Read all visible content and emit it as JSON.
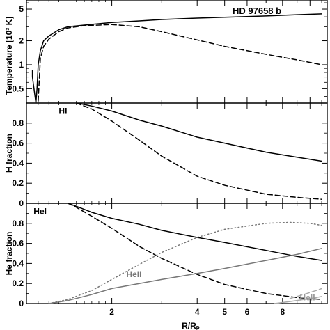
{
  "chart_data": [
    {
      "type": "line",
      "title": "HD 97658 b",
      "ylabel": "Temperature [10³ K]",
      "xlabel": "R/Rₚ",
      "xscale": "log",
      "yscale": "log",
      "xlim": [
        1.0,
        11.5
      ],
      "ylim": [
        0.33,
        6.5
      ],
      "yticks": [
        0.5,
        1,
        2,
        5
      ],
      "series": [
        {
          "style": "solid",
          "color": "#000000",
          "x": [
            1.05,
            1.05,
            1.08,
            1.09,
            1.1,
            1.12,
            1.15,
            1.2,
            1.3,
            1.4,
            1.6,
            2.0,
            2.5,
            3.0,
            4.0,
            5.0,
            7.0,
            9.0,
            11.0
          ],
          "y": [
            0.85,
            0.7,
            0.33,
            0.5,
            1.0,
            1.5,
            2.0,
            2.3,
            2.75,
            3.0,
            3.15,
            3.4,
            3.55,
            3.7,
            3.85,
            3.95,
            4.1,
            4.25,
            4.35
          ]
        },
        {
          "style": "dashed",
          "color": "#000000",
          "x": [
            1.1,
            1.12,
            1.15,
            1.2,
            1.3,
            1.4,
            1.6,
            2.0,
            2.5,
            3.0,
            4.0,
            5.0,
            7.0,
            9.0,
            11.0
          ],
          "y": [
            0.35,
            1.2,
            1.7,
            2.1,
            2.6,
            2.9,
            3.1,
            3.2,
            3.0,
            2.6,
            2.05,
            1.7,
            1.35,
            1.15,
            1.0
          ]
        }
      ]
    },
    {
      "type": "line",
      "ylabel": "H fraction",
      "xscale": "log",
      "xlim": [
        1.0,
        11.5
      ],
      "ylim": [
        0,
        1.0
      ],
      "yticks": [
        0,
        0.2,
        0.4,
        0.6,
        0.8
      ],
      "annotations": [
        {
          "text": "HI",
          "x": 1.3,
          "y": 0.92
        }
      ],
      "series": [
        {
          "style": "solid",
          "color": "#000000",
          "x": [
            1.5,
            1.7,
            2.0,
            2.5,
            3.0,
            4.0,
            5.0,
            7.0,
            9.0,
            11.0
          ],
          "y": [
            1.0,
            0.97,
            0.92,
            0.83,
            0.77,
            0.66,
            0.6,
            0.51,
            0.46,
            0.42
          ]
        },
        {
          "style": "dashed",
          "color": "#000000",
          "x": [
            1.5,
            1.7,
            2.0,
            2.5,
            3.0,
            4.0,
            5.0,
            7.0,
            9.0,
            11.0
          ],
          "y": [
            1.0,
            0.94,
            0.82,
            0.63,
            0.47,
            0.27,
            0.18,
            0.09,
            0.06,
            0.04
          ]
        }
      ]
    },
    {
      "type": "line",
      "ylabel": "He fraction",
      "xlabel": "R/Rₚ",
      "xscale": "log",
      "xlim": [
        1.0,
        11.5
      ],
      "ylim": [
        0,
        1.0
      ],
      "yticks": [
        0,
        0.2,
        0.4,
        0.6,
        0.8
      ],
      "xticks": [
        2,
        4,
        5,
        6,
        8
      ],
      "annotations": [
        {
          "text": "HeI",
          "x": 1.06,
          "y": 0.92,
          "color": "#000000"
        },
        {
          "text": "HeII",
          "x": 2.25,
          "y": 0.29,
          "color": "#777777"
        },
        {
          "text": "HeII",
          "x": 9.2,
          "y": 0.06,
          "color": "#999999"
        }
      ],
      "series": [
        {
          "name": "HeI",
          "style": "solid",
          "color": "#000000",
          "x": [
            1.4,
            1.5,
            1.7,
            2.0,
            2.5,
            3.0,
            4.0,
            5.0,
            7.0,
            9.0,
            11.0
          ],
          "y": [
            1.0,
            0.97,
            0.91,
            0.85,
            0.79,
            0.73,
            0.66,
            0.61,
            0.53,
            0.47,
            0.43
          ]
        },
        {
          "name": "HeI",
          "style": "dashed",
          "color": "#000000",
          "x": [
            1.4,
            1.5,
            1.7,
            2.0,
            2.5,
            3.0,
            4.0,
            5.0,
            7.0,
            9.0,
            11.0
          ],
          "y": [
            1.0,
            0.96,
            0.87,
            0.75,
            0.57,
            0.45,
            0.29,
            0.19,
            0.1,
            0.06,
            0.04
          ]
        },
        {
          "name": "HeII",
          "style": "solid",
          "color": "#777777",
          "x": [
            1.2,
            1.4,
            1.7,
            2.0,
            2.5,
            3.0,
            4.0,
            5.0,
            7.0,
            9.0,
            11.0
          ],
          "y": [
            0.0,
            0.03,
            0.09,
            0.15,
            0.2,
            0.24,
            0.3,
            0.35,
            0.43,
            0.49,
            0.55
          ]
        },
        {
          "name": "HeII",
          "style": "dotted",
          "color": "#777777",
          "x": [
            1.2,
            1.4,
            1.7,
            2.0,
            2.5,
            3.0,
            4.0,
            5.0,
            7.0,
            8.5,
            10.0,
            11.0
          ],
          "y": [
            0.0,
            0.04,
            0.13,
            0.24,
            0.39,
            0.51,
            0.66,
            0.74,
            0.8,
            0.81,
            0.8,
            0.78
          ]
        },
        {
          "name": "HeII",
          "style": "solid",
          "color": "#aaaaaa",
          "x": [
            7.5,
            8.5,
            9.5,
            10.5,
            11.0
          ],
          "y": [
            0.0,
            0.02,
            0.04,
            0.06,
            0.07
          ]
        },
        {
          "name": "HeII",
          "style": "dashed",
          "color": "#aaaaaa",
          "x": [
            8.5,
            9.5,
            10.5,
            11.0
          ],
          "y": [
            0.05,
            0.09,
            0.13,
            0.15
          ]
        }
      ]
    }
  ]
}
